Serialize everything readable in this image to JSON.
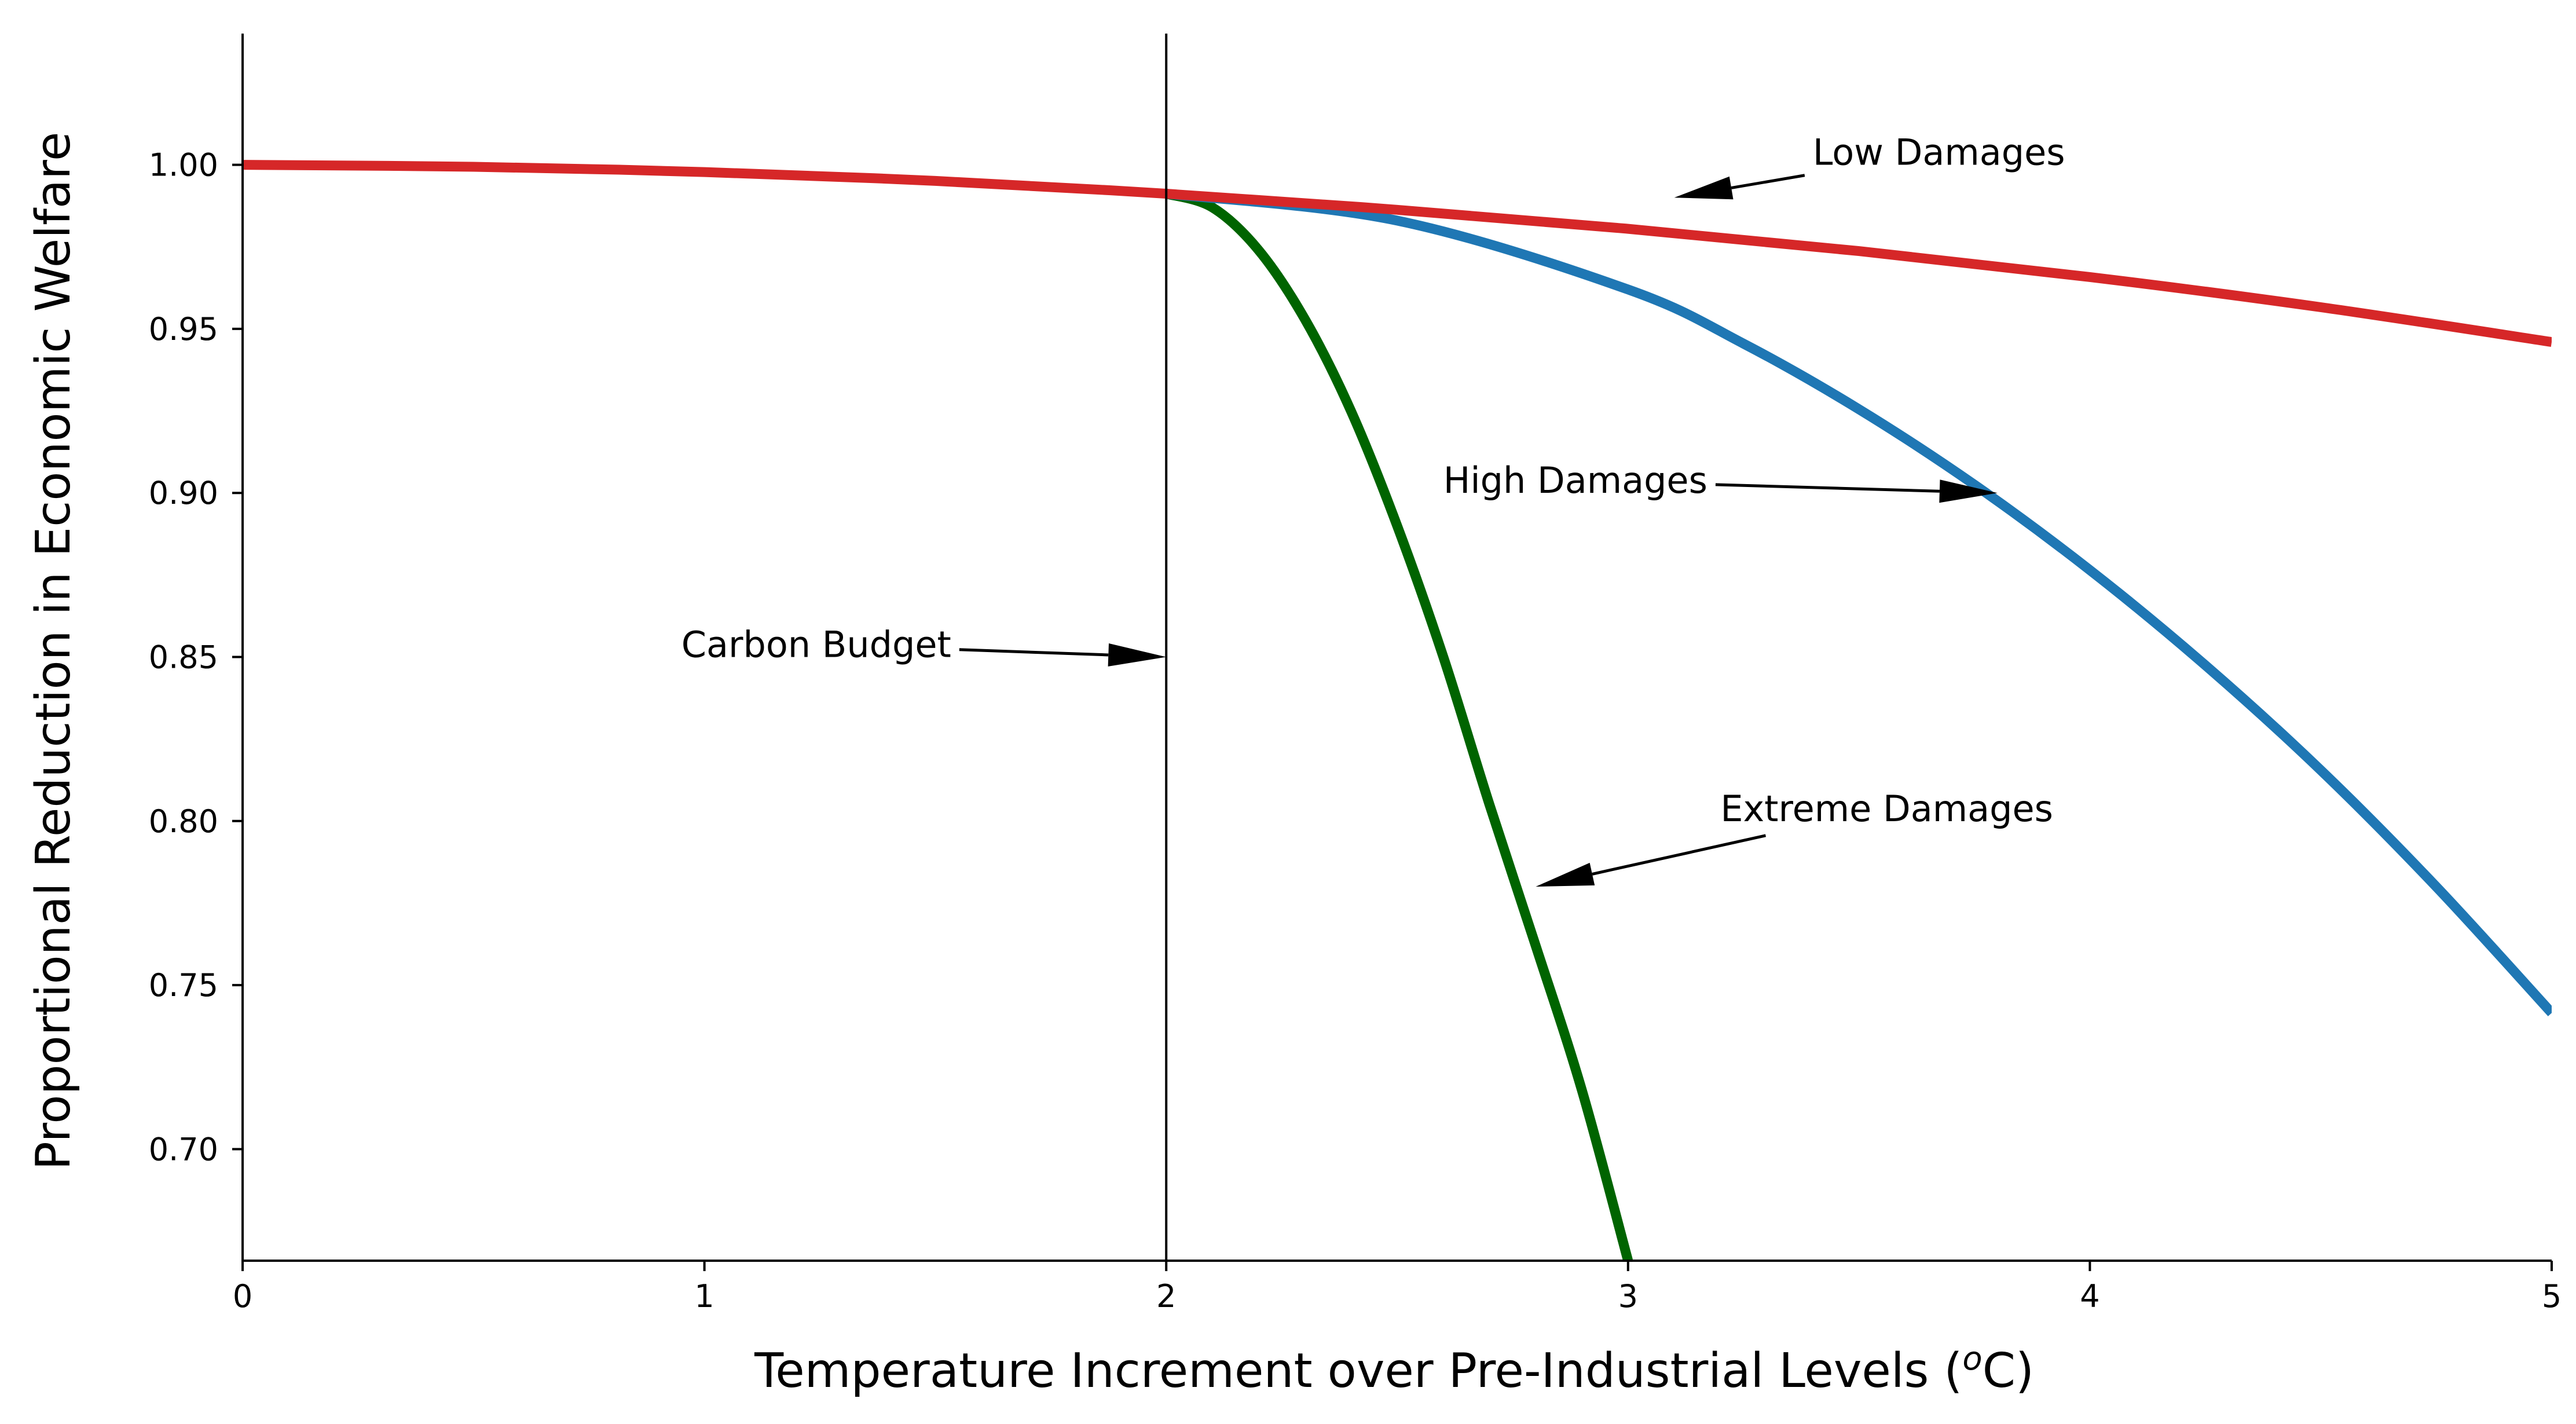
{
  "chart_data": {
    "type": "line",
    "title": "",
    "xlabel": "Temperature Increment over Pre-Industrial Levels (",
    "xlabel_superscript": "o",
    "xlabel_suffix": "C)",
    "ylabel": "Proportional Reduction in Economic Welfare",
    "xlim": [
      0,
      5
    ],
    "ylim": [
      0.666,
      1.04
    ],
    "x_ticks": [
      0,
      1,
      2,
      3,
      4,
      5
    ],
    "x_tick_labels": [
      "0",
      "1",
      "2",
      "3",
      "4",
      "5"
    ],
    "y_ticks": [
      0.7,
      0.75,
      0.8,
      0.85,
      0.9,
      0.95,
      1.0
    ],
    "y_tick_labels": [
      "0.70",
      "0.75",
      "0.80",
      "0.85",
      "0.90",
      "0.95",
      "1.00"
    ],
    "grid": false,
    "series": [
      {
        "key": "low",
        "color": "#d62728",
        "x": [
          0,
          0.5,
          1,
          1.5,
          2,
          2.5,
          3,
          3.5,
          4,
          4.5,
          5
        ],
        "y": [
          1.0,
          0.9994,
          0.9978,
          0.9951,
          0.9912,
          0.9863,
          0.9805,
          0.9737,
          0.9658,
          0.9566,
          0.946
        ]
      },
      {
        "key": "high",
        "color": "#1f77b4",
        "x": [
          2,
          2.5,
          3,
          3.25,
          3.5,
          3.75,
          4,
          4.25,
          4.5,
          4.75,
          5
        ],
        "y": [
          0.9912,
          0.983,
          0.962,
          0.9455,
          0.9255,
          0.9025,
          0.8765,
          0.8475,
          0.8155,
          0.78,
          0.7415
        ]
      },
      {
        "key": "extreme",
        "color": "#006400",
        "x": [
          2,
          2.1,
          2.2,
          2.3,
          2.4,
          2.5,
          2.6,
          2.7,
          2.8,
          2.9,
          3.0
        ],
        "y": [
          0.9912,
          0.987,
          0.974,
          0.953,
          0.925,
          0.89,
          0.85,
          0.805,
          0.762,
          0.718,
          0.666
        ]
      }
    ],
    "vertical_line": {
      "x": 2,
      "color": "#000000"
    },
    "annotations": [
      {
        "key": "carbon-budget",
        "text": "Carbon Budget",
        "text_x": 0.95,
        "text_y": 0.85,
        "arrow_x": 2.0,
        "arrow_y": 0.85
      },
      {
        "key": "high-damages",
        "text": "High Damages",
        "text_x": 2.6,
        "text_y": 0.9,
        "arrow_x": 3.8,
        "arrow_y": 0.9
      },
      {
        "key": "low-damages",
        "text": "Low Damages",
        "text_x": 3.4,
        "text_y": 1.0,
        "arrow_x": 3.1,
        "arrow_y": 0.99
      },
      {
        "key": "extreme-damages",
        "text": "Extreme Damages",
        "text_x": 3.2,
        "text_y": 0.8,
        "arrow_x": 2.8,
        "arrow_y": 0.78
      }
    ]
  }
}
